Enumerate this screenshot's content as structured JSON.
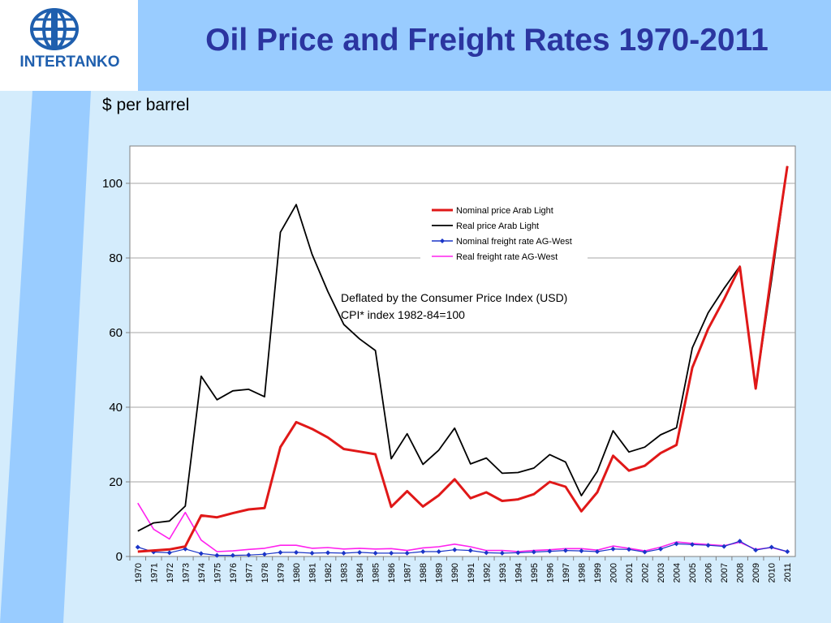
{
  "slide": {
    "title": "Oil Price and Freight Rates 1970-2011",
    "unit_label": "$ per barrel",
    "logo_text": "INTERTANKO"
  },
  "colors": {
    "title": "#2b35a0",
    "header_band": "#99ccff",
    "content_bg": "#d4ecfc",
    "nominal_price": "#e01818",
    "real_price": "#000000",
    "nominal_freight": "#1a35c8",
    "real_freight": "#ff22ee"
  },
  "chart_data": {
    "type": "line",
    "title": "",
    "xlabel": "",
    "ylabel": "$ per barrel",
    "ylim": [
      0,
      110
    ],
    "yticks": [
      0,
      20,
      40,
      60,
      80,
      100
    ],
    "grid": true,
    "legend_position": "top-right",
    "annotation": [
      "Deflated by the Consumer Price Index (USD)",
      "CPI* index 1982-84=100"
    ],
    "x": [
      "1970",
      "1971",
      "1972",
      "1973",
      "1974",
      "1975",
      "1976",
      "1977",
      "1978",
      "1979",
      "1980",
      "1981",
      "1982",
      "1983",
      "1984",
      "1985",
      "1986",
      "1987",
      "1988",
      "1989",
      "1990",
      "1991",
      "1992",
      "1993",
      "1994",
      "1995",
      "1996",
      "1997",
      "1998",
      "1999",
      "2000",
      "2001",
      "2002",
      "2003",
      "2004",
      "2005",
      "2006",
      "2007",
      "2008",
      "2009",
      "2010",
      "2011"
    ],
    "series": [
      {
        "name": "Nominal price Arab Light",
        "color": "#e01818",
        "width": 3,
        "marker": false,
        "values": [
          1.3,
          1.6,
          1.9,
          2.7,
          11.0,
          10.5,
          11.6,
          12.6,
          13.0,
          29.3,
          36.0,
          34.2,
          31.9,
          28.8,
          28.1,
          27.4,
          13.3,
          17.5,
          13.4,
          16.4,
          20.7,
          15.6,
          17.2,
          14.9,
          15.3,
          16.7,
          20.0,
          18.7,
          12.1,
          17.2,
          27.0,
          23.0,
          24.3,
          27.7,
          29.9,
          50.6,
          61.0,
          68.9,
          77.6,
          45.0,
          76.0,
          104.6
        ]
      },
      {
        "name": "Real price Arab Light",
        "color": "#000000",
        "width": 1.8,
        "marker": false,
        "values": [
          6.8,
          9.0,
          9.5,
          13.5,
          48.3,
          42.0,
          44.4,
          44.8,
          42.8,
          86.9,
          94.3,
          81.0,
          71.0,
          62.2,
          58.3,
          55.2,
          26.2,
          32.9,
          24.7,
          28.5,
          34.4,
          24.8,
          26.4,
          22.3,
          22.5,
          23.7,
          27.3,
          25.3,
          16.3,
          22.8,
          33.7,
          28.0,
          29.3,
          32.6,
          34.5,
          55.9,
          65.3,
          71.8,
          77.8,
          45.0,
          74.0,
          104.6
        ]
      },
      {
        "name": "Nominal freight rate AG-West",
        "color": "#1a35c8",
        "width": 1.2,
        "marker": true,
        "values": [
          2.5,
          1.2,
          1.0,
          2.0,
          0.8,
          0.3,
          0.3,
          0.4,
          0.6,
          1.1,
          1.1,
          0.9,
          1.0,
          0.9,
          1.1,
          0.9,
          0.9,
          0.9,
          1.3,
          1.3,
          1.8,
          1.6,
          1.0,
          0.9,
          1.0,
          1.2,
          1.4,
          1.6,
          1.5,
          1.3,
          2.0,
          1.9,
          1.2,
          2.0,
          3.4,
          3.2,
          3.0,
          2.7,
          4.1,
          1.7,
          2.5,
          1.3
        ]
      },
      {
        "name": "Real freight rate AG-West",
        "color": "#ff22ee",
        "width": 1.6,
        "marker": false,
        "values": [
          14.3,
          7.3,
          4.7,
          11.8,
          4.4,
          1.3,
          1.5,
          1.9,
          2.2,
          3.0,
          3.0,
          2.2,
          2.4,
          2.0,
          2.2,
          2.0,
          2.1,
          1.6,
          2.3,
          2.6,
          3.3,
          2.6,
          1.6,
          1.6,
          1.3,
          1.6,
          1.8,
          2.1,
          2.1,
          1.7,
          2.8,
          2.2,
          1.5,
          2.5,
          3.9,
          3.5,
          3.2,
          2.9,
          3.8,
          1.9,
          2.4,
          1.3
        ]
      }
    ]
  }
}
